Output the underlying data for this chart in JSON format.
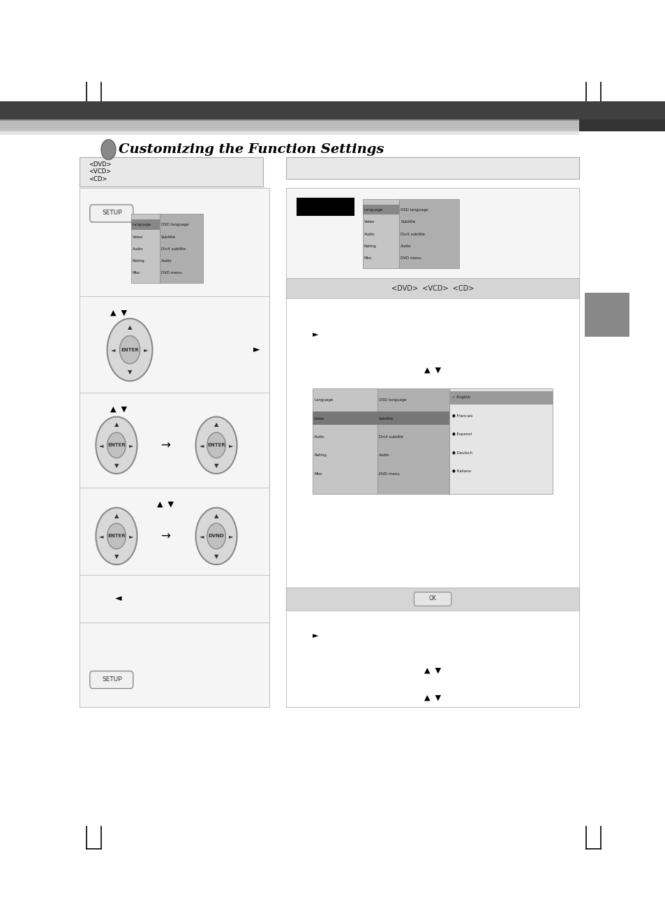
{
  "title": "Customizing the Function Settings",
  "bg_color": "#ffffff",
  "disc_types": [
    "<DVD>",
    "<VCD>",
    "<CD>"
  ],
  "menu_items_left": [
    "Language",
    "Video",
    "Audio",
    "Rating",
    "Misc"
  ],
  "menu_items_right": [
    "OSD language",
    "Subtitle",
    "DivX subtitle",
    "Audio",
    "DVD menu"
  ],
  "submenu_items": [
    "English",
    "Francais",
    "Espanol",
    "Deutsch",
    "Italiano"
  ]
}
